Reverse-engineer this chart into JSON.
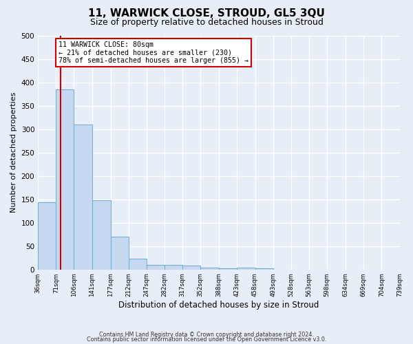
{
  "title": "11, WARWICK CLOSE, STROUD, GL5 3QU",
  "subtitle": "Size of property relative to detached houses in Stroud",
  "xlabel": "Distribution of detached houses by size in Stroud",
  "ylabel": "Number of detached properties",
  "bar_edges": [
    36,
    71,
    106,
    141,
    177,
    212,
    247,
    282,
    317,
    352,
    388,
    423,
    458,
    493,
    528,
    563,
    598,
    634,
    669,
    704,
    739
  ],
  "bar_heights": [
    143,
    385,
    310,
    148,
    70,
    23,
    10,
    10,
    8,
    4,
    2,
    4,
    2,
    0,
    0,
    0,
    0,
    0,
    0,
    0
  ],
  "bar_color": "#c5d8f0",
  "bar_edge_color": "#6aaad4",
  "vline_color": "#cc0000",
  "vline_x": 80,
  "annotation_text": "11 WARWICK CLOSE: 80sqm\n← 21% of detached houses are smaller (230)\n78% of semi-detached houses are larger (855) →",
  "annotation_box_color": "#ffffff",
  "annotation_box_edge": "#cc0000",
  "ylim": [
    0,
    500
  ],
  "yticks": [
    0,
    50,
    100,
    150,
    200,
    250,
    300,
    350,
    400,
    450,
    500
  ],
  "tick_labels": [
    "36sqm",
    "71sqm",
    "106sqm",
    "141sqm",
    "177sqm",
    "212sqm",
    "247sqm",
    "282sqm",
    "317sqm",
    "352sqm",
    "388sqm",
    "423sqm",
    "458sqm",
    "493sqm",
    "528sqm",
    "563sqm",
    "598sqm",
    "634sqm",
    "669sqm",
    "704sqm",
    "739sqm"
  ],
  "footer_line1": "Contains HM Land Registry data © Crown copyright and database right 2024.",
  "footer_line2": "Contains public sector information licensed under the Open Government Licence v3.0.",
  "bg_color": "#e8eef8",
  "plot_bg_color": "#e8eef8",
  "title_fontsize": 11,
  "subtitle_fontsize": 9
}
